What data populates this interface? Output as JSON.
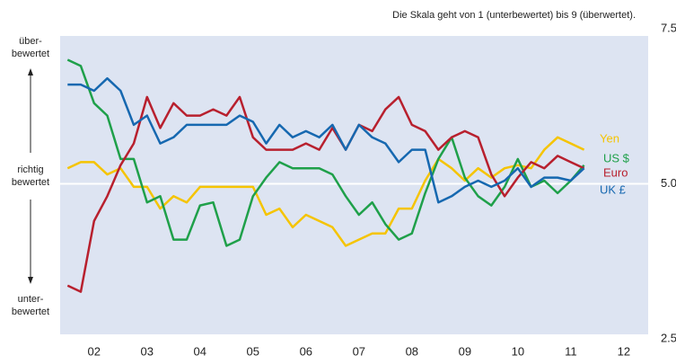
{
  "chart_data": {
    "type": "line",
    "subtitle": "Die Skala geht von 1 (unterbewertet) bis 9 (überwertet).",
    "annotations": {
      "top": [
        "über-",
        "bewertet"
      ],
      "middle": [
        "richtig",
        "bewertet"
      ],
      "bottom": [
        "unter-",
        "bewertet"
      ]
    },
    "x": [
      2002,
      2002.25,
      2002.5,
      2002.75,
      2003,
      2003.25,
      2003.5,
      2003.75,
      2004,
      2004.25,
      2004.5,
      2004.75,
      2005,
      2005.25,
      2005.5,
      2005.75,
      2006,
      2006.25,
      2006.5,
      2006.75,
      2007,
      2007.25,
      2007.5,
      2007.75,
      2008,
      2008.25,
      2008.5,
      2008.75,
      2009,
      2009.25,
      2009.5,
      2009.75,
      2010,
      2010.25,
      2010.5,
      2010.75,
      2011,
      2011.25,
      2011.5,
      2011.75
    ],
    "xlim": [
      2001.86,
      2012.96
    ],
    "xticks": [
      {
        "value": 2002.5,
        "label": "02"
      },
      {
        "value": 2003.5,
        "label": "03"
      },
      {
        "value": 2004.5,
        "label": "04"
      },
      {
        "value": 2005.5,
        "label": "05"
      },
      {
        "value": 2006.5,
        "label": "06"
      },
      {
        "value": 2007.5,
        "label": "07"
      },
      {
        "value": 2008.5,
        "label": "08"
      },
      {
        "value": 2009.5,
        "label": "09"
      },
      {
        "value": 2010.5,
        "label": "10"
      },
      {
        "value": 2011.5,
        "label": "11"
      },
      {
        "value": 2012.5,
        "label": "12"
      }
    ],
    "ylim": [
      2.5,
      7.5
    ],
    "yticks": [
      2.5,
      {
        "value": 5,
        "label": "5.0"
      },
      7.5
    ],
    "series": [
      {
        "name": "Yen",
        "color": "#f5c400",
        "values": [
          5.25,
          5.35,
          5.35,
          5.15,
          5.25,
          4.95,
          4.95,
          4.6,
          4.8,
          4.7,
          4.95,
          4.95,
          4.95,
          4.95,
          4.95,
          4.5,
          4.6,
          4.3,
          4.5,
          4.4,
          4.3,
          4.0,
          4.1,
          4.2,
          4.2,
          4.6,
          4.6,
          5.05,
          5.4,
          5.25,
          5.05,
          5.25,
          5.1,
          5.25,
          5.3,
          5.25,
          5.55,
          5.75,
          5.65,
          5.55
        ]
      },
      {
        "name": "US $",
        "color": "#1fa04a",
        "values": [
          7.0,
          6.9,
          6.3,
          6.1,
          5.4,
          5.4,
          4.7,
          4.8,
          4.1,
          4.1,
          4.65,
          4.7,
          4.0,
          4.1,
          4.8,
          5.1,
          5.35,
          5.25,
          5.25,
          5.25,
          5.15,
          4.8,
          4.5,
          4.7,
          4.35,
          4.1,
          4.2,
          4.85,
          5.4,
          5.75,
          5.1,
          4.8,
          4.65,
          4.95,
          5.4,
          4.95,
          5.05,
          4.85,
          5.05,
          5.3
        ]
      },
      {
        "name": "Euro",
        "color": "#b8202e",
        "values": [
          3.36,
          3.26,
          4.4,
          4.8,
          5.3,
          5.65,
          6.4,
          5.9,
          6.3,
          6.1,
          6.1,
          6.2,
          6.1,
          6.4,
          5.75,
          5.55,
          5.55,
          5.55,
          5.65,
          5.55,
          5.9,
          5.55,
          5.95,
          5.85,
          6.2,
          6.4,
          5.95,
          5.85,
          5.55,
          5.75,
          5.85,
          5.75,
          5.15,
          4.8,
          5.1,
          5.35,
          5.25,
          5.45,
          5.35,
          5.25
        ]
      },
      {
        "name": "UK £",
        "color": "#1668b0",
        "values": [
          6.6,
          6.6,
          6.5,
          6.7,
          6.5,
          5.95,
          6.1,
          5.65,
          5.75,
          5.95,
          5.95,
          5.95,
          5.95,
          6.1,
          6.0,
          5.65,
          5.95,
          5.75,
          5.85,
          5.75,
          5.95,
          5.55,
          5.95,
          5.75,
          5.65,
          5.35,
          5.55,
          5.55,
          4.7,
          4.8,
          4.95,
          5.05,
          4.95,
          5.05,
          5.25,
          4.95,
          5.1,
          5.1,
          5.05,
          5.25
        ]
      }
    ]
  }
}
